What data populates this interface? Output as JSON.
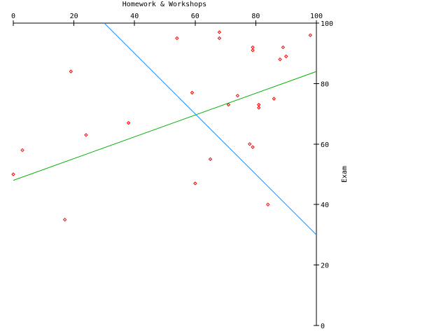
{
  "chart_data": {
    "type": "scatter",
    "xlabel": "Homework & Workshops",
    "ylabel": "Exam",
    "xlim": [
      0,
      100
    ],
    "ylim": [
      0,
      100
    ],
    "x_ticks": [
      "0",
      "20",
      "40",
      "60",
      "80",
      "100"
    ],
    "y_ticks": [
      "0",
      "20",
      "40",
      "60",
      "80",
      "100"
    ],
    "x_axis_position": "top",
    "y_axis_position": "right",
    "grid": false,
    "point_color": "#ff0000",
    "series": [
      {
        "marker": "diamond",
        "x": [
          0,
          3,
          17,
          19,
          24,
          38,
          54,
          59,
          60,
          65,
          68,
          68,
          71,
          74,
          78,
          79,
          79,
          79,
          81,
          81,
          84,
          86,
          88,
          89,
          90,
          98
        ],
        "y": [
          50,
          58,
          35,
          84,
          63,
          67,
          95,
          77,
          47,
          55,
          97,
          95,
          73,
          76,
          60,
          59,
          91,
          92,
          73,
          72,
          40,
          75,
          88,
          92,
          89,
          96
        ]
      }
    ],
    "lines": [
      {
        "color": "#00b000",
        "x": [
          0,
          100
        ],
        "y": [
          48,
          84
        ]
      },
      {
        "color": "#1e90ff",
        "x": [
          30,
          100
        ],
        "y": [
          100,
          30
        ]
      }
    ]
  }
}
